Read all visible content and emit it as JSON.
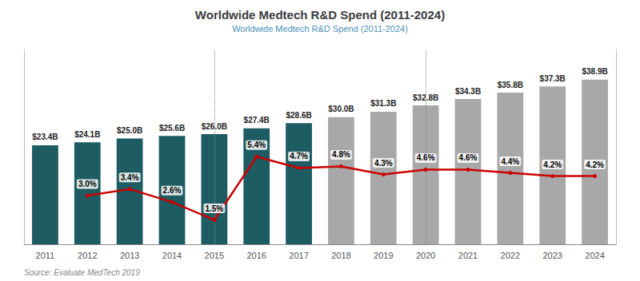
{
  "chart_data": {
    "type": "bar",
    "title": "Worldwide Medtech R&D Spend (2011-2024)",
    "subtitle": "Worldwide Medtech R&D Spend (2011-2024)",
    "source": "Source: Evaluate MedTech 2019",
    "categories": [
      "2011",
      "2012",
      "2013",
      "2014",
      "2015",
      "2016",
      "2017",
      "2018",
      "2019",
      "2020",
      "2021",
      "2022",
      "2023",
      "2024"
    ],
    "series": [
      {
        "type": "bar",
        "colors": [
          "#1d5c63",
          "#1d5c63",
          "#1d5c63",
          "#1d5c63",
          "#1d5c63",
          "#1d5c63",
          "#1d5c63",
          "#a8a8a8",
          "#a8a8a8",
          "#a8a8a8",
          "#a8a8a8",
          "#a8a8a8",
          "#a8a8a8",
          "#a8a8a8"
        ],
        "values": [
          23.4,
          24.1,
          25.0,
          25.6,
          26.0,
          27.4,
          28.6,
          30.0,
          31.3,
          32.8,
          34.3,
          35.8,
          37.3,
          38.9
        ],
        "value_labels": [
          "$23.4B",
          "$24.1B",
          "$25.0B",
          "$25.6B",
          "$26.0B",
          "$27.4B",
          "$28.6B",
          "$30.0B",
          "$31.3B",
          "$32.8B",
          "$34.3B",
          "$35.8B",
          "$37.3B",
          "$38.9B"
        ]
      },
      {
        "type": "line",
        "axis": "y2",
        "color": "#cc0000",
        "values": [
          null,
          3.0,
          3.4,
          2.6,
          1.5,
          5.4,
          4.7,
          4.8,
          4.3,
          4.6,
          4.6,
          4.4,
          4.2,
          4.2
        ],
        "value_labels": [
          null,
          "3.0%",
          "3.4%",
          "2.6%",
          "1.5%",
          "5.4%",
          "4.7%",
          "4.8%",
          "4.3%",
          "4.6%",
          "4.6%",
          "4.4%",
          "4.2%",
          "4.2%"
        ]
      }
    ],
    "separators": [
      3.5,
      8.5
    ],
    "ylim": [
      0,
      46
    ],
    "y2lim": [
      0,
      12
    ],
    "data_labels": true,
    "tick_labels": "x",
    "grid": false
  }
}
